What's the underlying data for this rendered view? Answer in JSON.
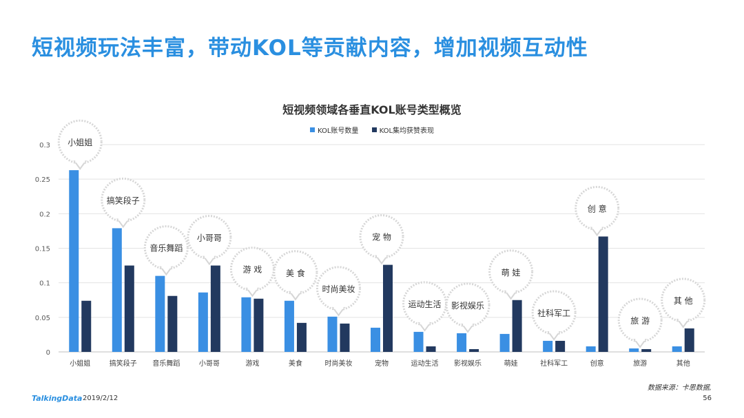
{
  "page": {
    "title": "短视频玩法丰富，带动KOL等贡献内容，增加视频互动性",
    "source": "数据来源：卡思数据,",
    "logo": "TalkingData",
    "date": "2019/2/12",
    "page_number": "56"
  },
  "colors": {
    "series1": "#3a8fe3",
    "series2": "#22395f",
    "bubble": "#d9d9d9"
  },
  "chart_data": {
    "type": "bar",
    "title": "短视频领域各垂直KOL账号类型概览",
    "categories": [
      "小姐姐",
      "搞笑段子",
      "音乐舞蹈",
      "小哥哥",
      "游戏",
      "美食",
      "时尚美妆",
      "宠物",
      "运动生活",
      "影视娱乐",
      "萌娃",
      "社科军工",
      "创意",
      "旅游",
      "其他"
    ],
    "bubble_labels": [
      "小姐姐",
      "搞笑段子",
      "音乐舞蹈",
      "小哥哥",
      "游 戏",
      "美 食",
      "时尚美妆",
      "宠 物",
      "运动生活",
      "影视娱乐",
      "萌 娃",
      "社科军工",
      "创 意",
      "旅 游",
      "其 他"
    ],
    "series": [
      {
        "name": "KOL账号数量",
        "values": [
          0.263,
          0.179,
          0.11,
          0.086,
          0.079,
          0.074,
          0.051,
          0.035,
          0.029,
          0.027,
          0.026,
          0.016,
          0.008,
          0.005,
          0.008
        ]
      },
      {
        "name": "KOL集均获赞表现",
        "values": [
          0.074,
          0.125,
          0.081,
          0.125,
          0.077,
          0.042,
          0.041,
          0.126,
          0.008,
          0.004,
          0.075,
          0.016,
          0.167,
          0.004,
          0.034
        ]
      }
    ],
    "y_ticks": [
      "0",
      "0.05",
      "0.1",
      "0.15",
      "0.2",
      "0.25",
      "0.3"
    ],
    "ylim": [
      0,
      0.3
    ],
    "grid": true,
    "legend_position": "top-center"
  }
}
